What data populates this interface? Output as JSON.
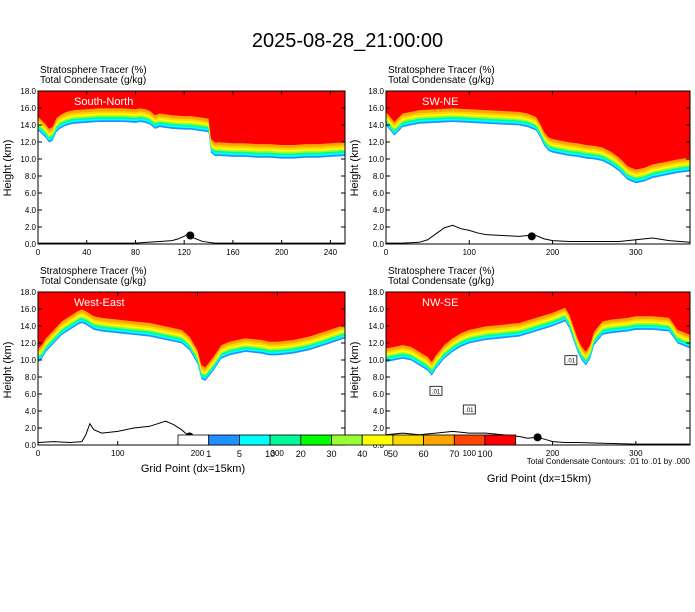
{
  "title": "2025-08-28_21:00:00",
  "panel_header": {
    "line1": "Stratosphere Tracer    (%)",
    "line2": "Total Condensate    (g/kg)"
  },
  "ylabel": "Height (km)",
  "xlabel": "Grid Point (dx=15km)",
  "contour_note": "Total Condensate Contours: .01 to .01 by .000",
  "colorbar": {
    "colors": [
      "#ffffff",
      "#1e90ff",
      "#00ffff",
      "#00fa9a",
      "#00ff00",
      "#9aff32",
      "#ffff00",
      "#ffd700",
      "#ffa500",
      "#ff4500",
      "#ff0000"
    ],
    "labels": [
      "1",
      "5",
      "10",
      "20",
      "30",
      "40",
      "50",
      "60",
      "70",
      "100"
    ]
  },
  "chart_data": [
    {
      "type": "heatmap",
      "label": "South-North",
      "xlim": [
        0,
        252
      ],
      "ylim": [
        0,
        18
      ],
      "xticks": [
        0,
        40,
        80,
        120,
        160,
        200,
        240
      ],
      "yticks": [
        0.0,
        2.0,
        4.0,
        6.0,
        8.0,
        10.0,
        12.0,
        14.0,
        16.0,
        18.0
      ],
      "boundary_x": [
        0,
        3,
        6,
        9,
        12,
        15,
        18,
        22,
        26,
        30,
        40,
        50,
        60,
        70,
        80,
        84,
        88,
        92,
        96,
        100,
        110,
        120,
        125,
        130,
        140,
        142,
        145,
        150,
        160,
        170,
        180,
        190,
        200,
        210,
        220,
        230,
        240,
        252
      ],
      "boundary_y": [
        14.6,
        14.2,
        13.8,
        13.2,
        13.4,
        14.4,
        14.8,
        15.1,
        15.3,
        15.4,
        15.5,
        15.6,
        15.6,
        15.6,
        15.5,
        15.6,
        15.5,
        15.3,
        14.8,
        15.0,
        14.8,
        14.7,
        14.7,
        14.6,
        14.4,
        12.0,
        11.6,
        11.6,
        11.5,
        11.5,
        11.4,
        11.4,
        11.3,
        11.3,
        11.4,
        11.4,
        11.5,
        11.6
      ],
      "terrain_x": [
        0,
        60,
        80,
        90,
        100,
        110,
        115,
        120,
        122,
        125,
        128,
        135,
        145,
        252
      ],
      "terrain_y": [
        0.1,
        0.1,
        0.1,
        0.2,
        0.3,
        0.4,
        0.6,
        0.9,
        1.1,
        1.0,
        0.7,
        0.3,
        0.1,
        0.1
      ],
      "marker": [
        125,
        1.0
      ]
    },
    {
      "type": "heatmap",
      "label": "SW-NE",
      "xlim": [
        0,
        365
      ],
      "ylim": [
        0,
        18
      ],
      "xticks": [
        0,
        100,
        200,
        300
      ],
      "yticks": [
        0.0,
        2.0,
        4.0,
        6.0,
        8.0,
        10.0,
        12.0,
        14.0,
        16.0,
        18.0
      ],
      "boundary_x": [
        0,
        5,
        10,
        15,
        20,
        30,
        40,
        60,
        80,
        100,
        120,
        140,
        160,
        170,
        180,
        185,
        190,
        195,
        200,
        210,
        220,
        230,
        240,
        250,
        260,
        270,
        280,
        290,
        300,
        310,
        320,
        330,
        340,
        350,
        365
      ],
      "boundary_y": [
        15.2,
        14.6,
        14.0,
        14.5,
        15.0,
        15.2,
        15.4,
        15.5,
        15.6,
        15.5,
        15.4,
        15.3,
        15.2,
        15.0,
        14.6,
        13.8,
        12.8,
        12.2,
        12.0,
        11.8,
        11.6,
        11.5,
        11.3,
        11.2,
        11.0,
        10.5,
        9.8,
        8.8,
        8.4,
        8.6,
        9.0,
        9.2,
        9.4,
        9.6,
        9.8
      ],
      "terrain_x": [
        0,
        20,
        40,
        50,
        60,
        70,
        80,
        90,
        100,
        110,
        120,
        140,
        160,
        170,
        175,
        180,
        190,
        200,
        220,
        240,
        260,
        280,
        300,
        320,
        340,
        365
      ],
      "terrain_y": [
        0.1,
        0.1,
        0.2,
        0.5,
        1.2,
        1.9,
        2.2,
        1.8,
        1.6,
        1.3,
        1.1,
        1.0,
        0.9,
        1.0,
        1.1,
        1.0,
        0.6,
        0.4,
        0.3,
        0.3,
        0.3,
        0.3,
        0.5,
        0.7,
        0.4,
        0.2
      ],
      "marker": [
        175,
        0.9
      ]
    },
    {
      "type": "heatmap",
      "label": "West-East",
      "xlim": [
        0,
        385
      ],
      "ylim": [
        0,
        18
      ],
      "xticks": [
        0,
        100,
        200,
        300
      ],
      "yticks": [
        0.0,
        2.0,
        4.0,
        6.0,
        8.0,
        10.0,
        12.0,
        14.0,
        16.0,
        18.0
      ],
      "boundary_x": [
        0,
        5,
        10,
        20,
        30,
        40,
        50,
        55,
        60,
        70,
        80,
        100,
        120,
        140,
        160,
        180,
        190,
        200,
        205,
        210,
        220,
        230,
        240,
        250,
        260,
        270,
        280,
        290,
        300,
        320,
        340,
        360,
        385
      ],
      "boundary_y": [
        11.0,
        11.4,
        12.2,
        13.2,
        14.2,
        14.8,
        15.4,
        15.6,
        15.4,
        14.8,
        14.6,
        14.4,
        14.2,
        14.0,
        13.6,
        13.2,
        12.4,
        10.8,
        9.0,
        8.8,
        10.0,
        11.4,
        11.8,
        12.0,
        12.2,
        12.1,
        12.0,
        11.8,
        11.8,
        12.0,
        12.4,
        13.0,
        13.8
      ],
      "terrain_x": [
        0,
        20,
        40,
        55,
        60,
        65,
        70,
        80,
        100,
        120,
        140,
        160,
        170,
        180,
        185,
        190,
        200,
        220,
        250,
        280,
        320,
        385
      ],
      "terrain_y": [
        0.3,
        0.4,
        0.3,
        0.4,
        1.2,
        2.5,
        1.8,
        1.4,
        1.6,
        2.0,
        2.2,
        2.8,
        2.4,
        1.8,
        1.4,
        1.0,
        0.6,
        0.4,
        0.3,
        0.2,
        0.1,
        0.1
      ],
      "marker": [
        190,
        1.0
      ]
    },
    {
      "type": "heatmap",
      "label": "NW-SE",
      "xlim": [
        0,
        365
      ],
      "ylim": [
        0,
        18
      ],
      "xticks": [
        0,
        100,
        200,
        300
      ],
      "yticks": [
        0.0,
        2.0,
        4.0,
        6.0,
        8.0,
        10.0,
        12.0,
        14.0,
        16.0,
        18.0
      ],
      "boundary_x": [
        0,
        10,
        20,
        30,
        40,
        50,
        55,
        60,
        70,
        80,
        90,
        100,
        120,
        140,
        160,
        180,
        200,
        210,
        215,
        220,
        225,
        230,
        235,
        240,
        245,
        250,
        260,
        270,
        290,
        300,
        320,
        340,
        350,
        365
      ],
      "boundary_y": [
        11.0,
        11.2,
        11.4,
        11.2,
        10.6,
        10.0,
        9.4,
        10.2,
        11.4,
        12.2,
        12.8,
        13.2,
        13.6,
        13.8,
        14.0,
        14.6,
        15.2,
        15.6,
        15.8,
        15.0,
        13.6,
        12.2,
        11.2,
        10.6,
        11.4,
        13.0,
        14.2,
        14.4,
        14.6,
        14.8,
        14.8,
        14.6,
        13.2,
        12.6
      ],
      "terrain_x": [
        0,
        20,
        40,
        60,
        80,
        100,
        120,
        140,
        160,
        170,
        180,
        190,
        200,
        215,
        230,
        260,
        300,
        365
      ],
      "terrain_y": [
        1.2,
        1.4,
        1.2,
        1.4,
        1.6,
        1.4,
        1.4,
        1.2,
        1.0,
        0.8,
        0.9,
        0.7,
        0.4,
        0.3,
        0.3,
        0.2,
        0.1,
        0.1
      ],
      "marker": [
        182,
        0.9
      ],
      "contour_labels": [
        ".01",
        ".01",
        ".01"
      ]
    }
  ]
}
